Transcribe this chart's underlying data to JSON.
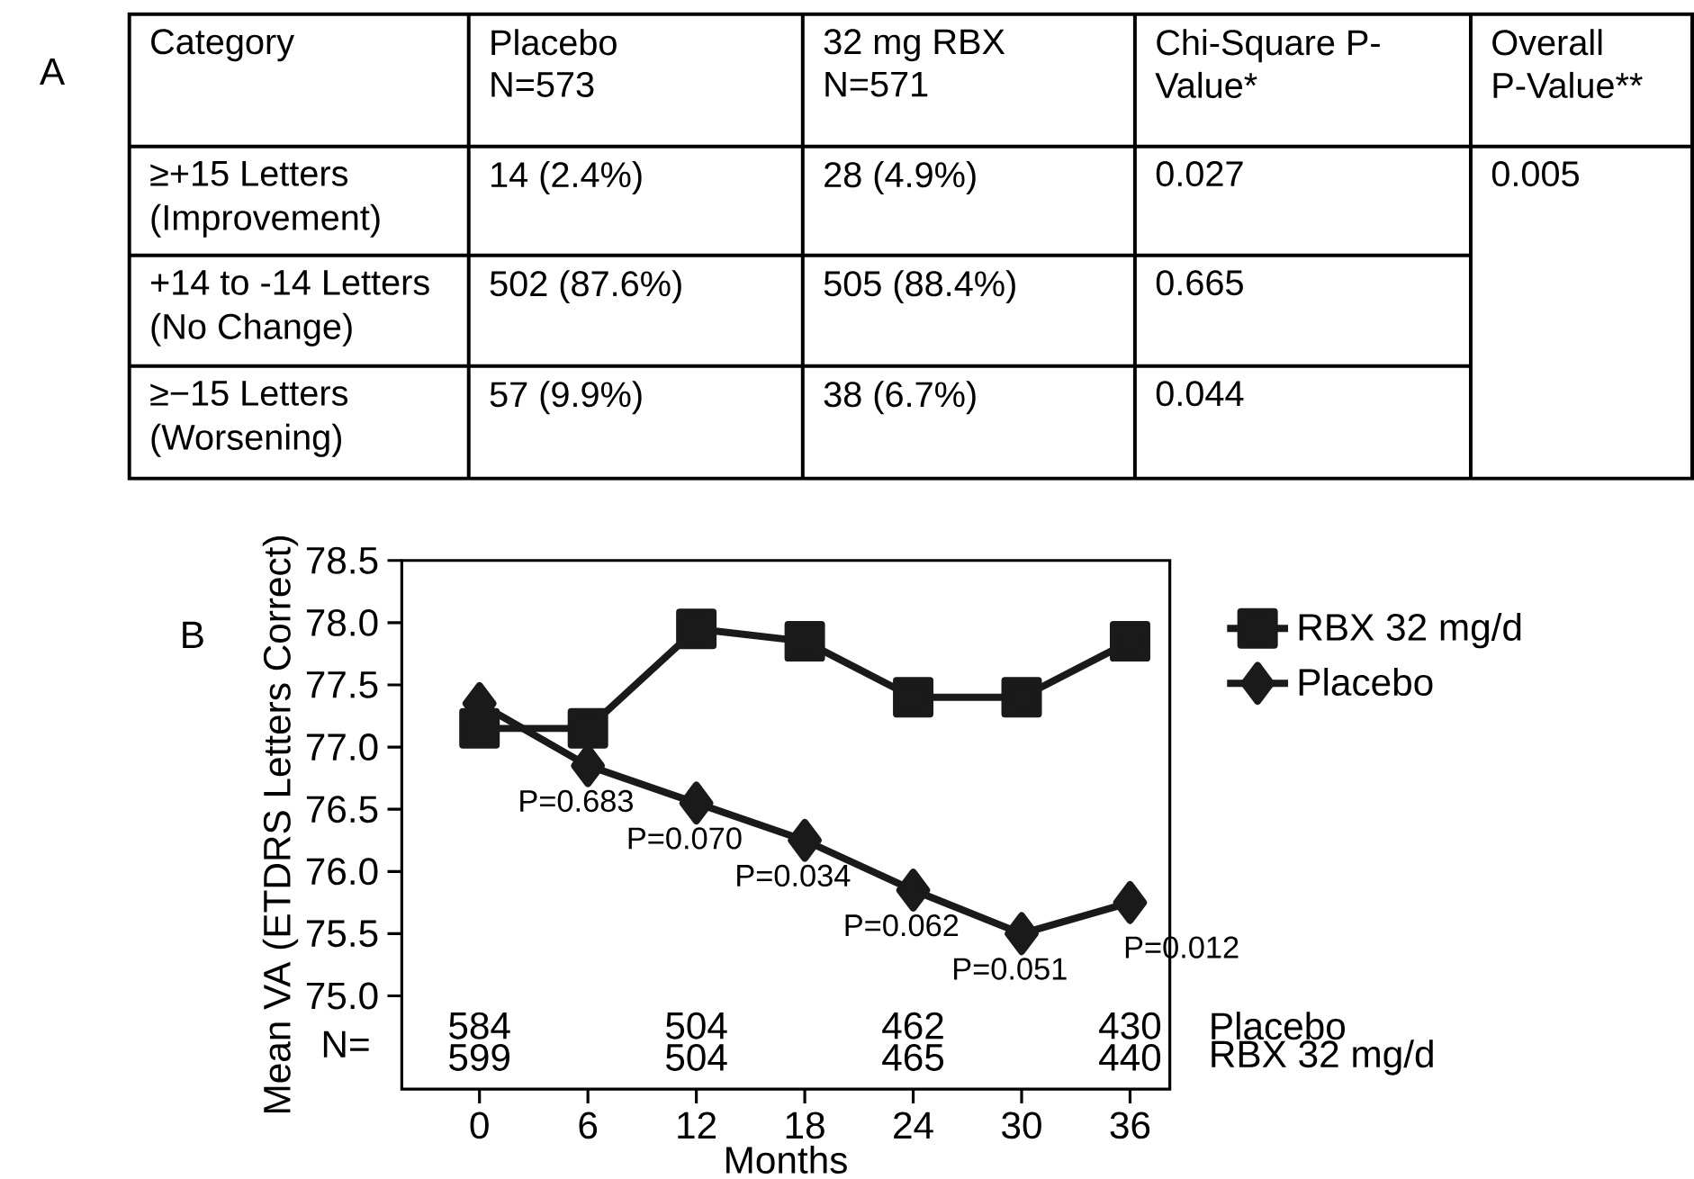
{
  "chart_data": [
    {
      "type": "other",
      "title": "A",
      "annotations": [
        "Category",
        "Placebo",
        "N=573",
        "32 mg RBX",
        "N=571",
        "Chi-Square P-",
        "Value*",
        "Overall",
        "P-Value**",
        "≥+15 Letters",
        "(Improvement)",
        "14 (2.4%)",
        "28 (4.9%)",
        "0.027",
        "0.005",
        "+14 to -14 Letters",
        "(No Change)",
        "502 (87.6%)",
        "505 (88.4%)",
        "0.665",
        "≥−15 Letters",
        "(Worsening)",
        "57 (9.9%)",
        "38 (6.7%)",
        "0.044"
      ]
    },
    {
      "type": "line",
      "title": "B",
      "xlabel": "Months",
      "ylabel": "Mean VA (ETDRS Letters Correct)",
      "x": [
        0,
        6,
        12,
        18,
        24,
        30,
        36
      ],
      "xlim": [
        -4.3,
        38.2
      ],
      "xticks": [
        0,
        6,
        12,
        18,
        24,
        30,
        36
      ],
      "ylim": [
        74.25,
        78.5
      ],
      "yticks": [
        {
          "value": 75,
          "label": "75.0"
        },
        {
          "value": 75.5,
          "label": "75.5"
        },
        {
          "value": 76,
          "label": "76.0"
        },
        {
          "value": 76.5,
          "label": "76.5"
        },
        {
          "value": 77,
          "label": "77.0"
        },
        {
          "value": 77.5,
          "label": "77.5"
        },
        {
          "value": 78,
          "label": "78.0"
        },
        {
          "value": 78.5,
          "label": "78.5"
        }
      ],
      "legend": "right",
      "grid": false,
      "series": [
        {
          "name": "RBX 32 mg/d",
          "color": "#1a1a1a",
          "marker": "square",
          "values": [
            77.15,
            77.15,
            77.95,
            77.85,
            77.4,
            77.4,
            77.85
          ]
        },
        {
          "name": "Placebo",
          "color": "#1a1a1a",
          "marker": "diamond",
          "values": [
            77.35,
            76.85,
            76.55,
            76.25,
            75.85,
            75.5,
            75.75
          ]
        }
      ],
      "annotations": [
        "N=",
        "Placebo",
        "RBX 32 mg/d",
        {
          "text": "P=0.683",
          "x": 6,
          "y": 76.85
        },
        {
          "text": "P=0.070",
          "x": 12,
          "y": 76.55
        },
        {
          "text": "P=0.034",
          "x": 18,
          "y": 76.25
        },
        {
          "text": "P=0.062",
          "x": 24,
          "y": 75.85
        },
        {
          "text": "P=0.051",
          "x": 30,
          "y": 75.5
        },
        {
          "text": "P=0.012",
          "x": 36,
          "y": 75.75
        },
        "584",
        "599",
        "504",
        "504",
        "462",
        "465",
        "430",
        "440"
      ]
    }
  ]
}
